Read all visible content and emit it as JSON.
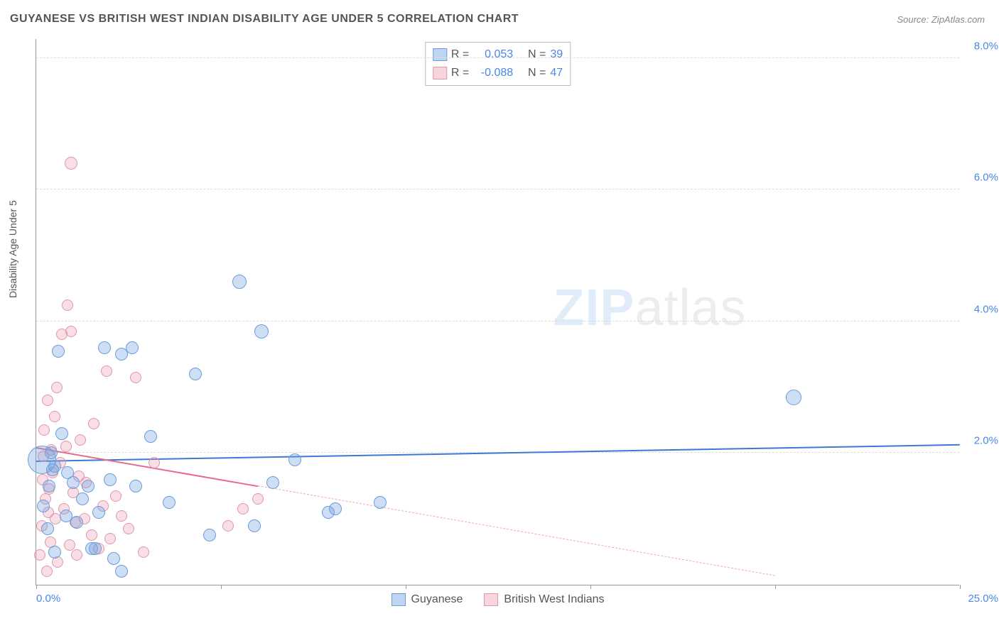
{
  "title": "GUYANESE VS BRITISH WEST INDIAN DISABILITY AGE UNDER 5 CORRELATION CHART",
  "source": "Source: ZipAtlas.com",
  "ylabel": "Disability Age Under 5",
  "watermark_zip": "ZIP",
  "watermark_atlas": "atlas",
  "chart": {
    "type": "scatter",
    "xlim": [
      0,
      25
    ],
    "ylim": [
      0,
      8.3
    ],
    "x_ticks": [
      0,
      5,
      10,
      15,
      20,
      25
    ],
    "x_tick_labels": [
      "0.0%",
      "",
      "",
      "",
      "",
      "25.0%"
    ],
    "y_ticks": [
      2,
      4,
      6,
      8
    ],
    "y_tick_labels": [
      "2.0%",
      "4.0%",
      "6.0%",
      "8.0%"
    ],
    "grid_color": "#dddddd",
    "background_color": "#ffffff",
    "axis_color": "#999999",
    "tick_label_color": "#4a86e8",
    "title_fontsize": 16,
    "label_fontsize": 14,
    "tick_fontsize": 15,
    "marker_radius": 9,
    "marker_radius_large": 14,
    "series": [
      {
        "name": "Guyanese",
        "color_fill": "rgba(112,161,225,0.35)",
        "color_stroke": "#6a9edb",
        "trend_color": "#3b78d8",
        "trend": {
          "x1": 0,
          "y1": 1.9,
          "x2": 25,
          "y2": 2.15,
          "solid_until_x": 25
        },
        "R": "0.053",
        "N": "39",
        "points": [
          [
            0.15,
            1.9,
            20
          ],
          [
            0.2,
            1.2,
            9
          ],
          [
            0.3,
            0.85,
            9
          ],
          [
            0.35,
            1.5,
            9
          ],
          [
            0.4,
            2.0,
            9
          ],
          [
            0.45,
            1.75,
            9
          ],
          [
            0.5,
            0.5,
            9
          ],
          [
            0.5,
            1.8,
            9
          ],
          [
            0.6,
            3.55,
            9
          ],
          [
            0.7,
            2.3,
            9
          ],
          [
            0.8,
            1.05,
            9
          ],
          [
            0.85,
            1.7,
            9
          ],
          [
            1.0,
            1.55,
            9
          ],
          [
            1.1,
            0.95,
            9
          ],
          [
            1.25,
            1.3,
            9
          ],
          [
            1.4,
            1.5,
            9
          ],
          [
            1.5,
            0.55,
            9
          ],
          [
            1.6,
            0.55,
            9
          ],
          [
            1.7,
            1.1,
            9
          ],
          [
            1.85,
            3.6,
            9
          ],
          [
            2.0,
            1.6,
            9
          ],
          [
            2.1,
            0.4,
            9
          ],
          [
            2.3,
            3.5,
            9
          ],
          [
            2.3,
            0.2,
            9
          ],
          [
            2.6,
            3.6,
            9
          ],
          [
            2.7,
            1.5,
            9
          ],
          [
            3.1,
            2.25,
            9
          ],
          [
            3.6,
            1.25,
            9
          ],
          [
            4.3,
            3.2,
            9
          ],
          [
            4.7,
            0.75,
            9
          ],
          [
            5.5,
            4.6,
            10
          ],
          [
            5.9,
            0.9,
            9
          ],
          [
            6.1,
            3.85,
            10
          ],
          [
            6.4,
            1.55,
            9
          ],
          [
            7.0,
            1.9,
            9
          ],
          [
            7.9,
            1.1,
            9
          ],
          [
            8.1,
            1.15,
            9
          ],
          [
            9.3,
            1.25,
            9
          ],
          [
            20.5,
            2.85,
            11
          ]
        ]
      },
      {
        "name": "British West Indians",
        "color_fill": "rgba(235,150,170,0.3)",
        "color_stroke": "#e196aa",
        "trend_color": "#e96a8d",
        "trend": {
          "x1": 0,
          "y1": 2.1,
          "x2": 20,
          "y2": 0.15,
          "solid_until_x": 6
        },
        "R": "-0.088",
        "N": "47",
        "points": [
          [
            0.1,
            0.45,
            8
          ],
          [
            0.15,
            0.9,
            8
          ],
          [
            0.18,
            1.6,
            8
          ],
          [
            0.2,
            1.95,
            8
          ],
          [
            0.22,
            2.35,
            8
          ],
          [
            0.25,
            1.3,
            8
          ],
          [
            0.28,
            0.2,
            8
          ],
          [
            0.3,
            2.8,
            8
          ],
          [
            0.32,
            1.1,
            8
          ],
          [
            0.35,
            1.45,
            8
          ],
          [
            0.38,
            0.65,
            8
          ],
          [
            0.4,
            2.05,
            8
          ],
          [
            0.45,
            1.7,
            8
          ],
          [
            0.5,
            2.55,
            8
          ],
          [
            0.52,
            1.0,
            8
          ],
          [
            0.55,
            3.0,
            8
          ],
          [
            0.58,
            0.35,
            8
          ],
          [
            0.65,
            1.85,
            8
          ],
          [
            0.7,
            3.8,
            8
          ],
          [
            0.75,
            1.15,
            8
          ],
          [
            0.8,
            2.1,
            8
          ],
          [
            0.85,
            4.25,
            8
          ],
          [
            0.9,
            0.6,
            8
          ],
          [
            0.95,
            3.85,
            8
          ],
          [
            0.95,
            6.4,
            9
          ],
          [
            1.0,
            1.4,
            8
          ],
          [
            1.05,
            0.95,
            8
          ],
          [
            1.1,
            0.45,
            8
          ],
          [
            1.15,
            1.65,
            8
          ],
          [
            1.2,
            2.2,
            8
          ],
          [
            1.3,
            1.0,
            8
          ],
          [
            1.35,
            1.55,
            8
          ],
          [
            1.5,
            0.75,
            8
          ],
          [
            1.55,
            2.45,
            8
          ],
          [
            1.7,
            0.55,
            8
          ],
          [
            1.8,
            1.2,
            8
          ],
          [
            1.9,
            3.25,
            8
          ],
          [
            2.0,
            0.7,
            8
          ],
          [
            2.15,
            1.35,
            8
          ],
          [
            2.3,
            1.05,
            8
          ],
          [
            2.5,
            0.85,
            8
          ],
          [
            2.7,
            3.15,
            8
          ],
          [
            2.9,
            0.5,
            8
          ],
          [
            3.2,
            1.85,
            8
          ],
          [
            5.2,
            0.9,
            8
          ],
          [
            5.6,
            1.15,
            8
          ],
          [
            6.0,
            1.3,
            8
          ]
        ]
      }
    ]
  },
  "legend_top": {
    "rows": [
      {
        "swatch": "blue",
        "r_label": "R =",
        "r_value": "0.053",
        "n_label": "N =",
        "n_value": "39"
      },
      {
        "swatch": "pink",
        "r_label": "R =",
        "r_value": "-0.088",
        "n_label": "N =",
        "n_value": "47"
      }
    ]
  },
  "legend_bottom": {
    "items": [
      {
        "swatch": "blue",
        "label": "Guyanese"
      },
      {
        "swatch": "pink",
        "label": "British West Indians"
      }
    ]
  }
}
